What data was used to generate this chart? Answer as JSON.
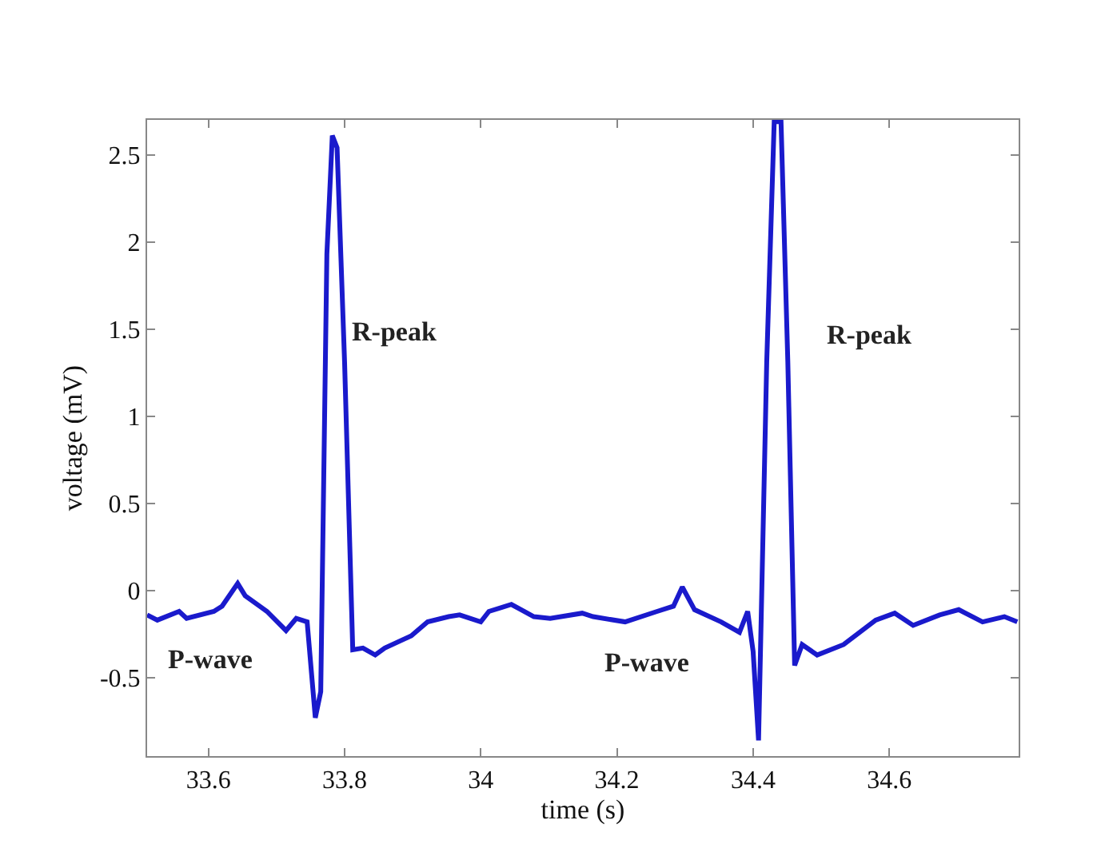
{
  "chart_data": {
    "type": "line",
    "xlabel": "time (s)",
    "ylabel": "voltage (mV)",
    "xlim": [
      33.51,
      34.79
    ],
    "ylim": [
      -0.95,
      2.7
    ],
    "xticks": [
      {
        "value": 33.6,
        "label": "33.6"
      },
      {
        "value": 33.8,
        "label": "33.8"
      },
      34,
      {
        "value": 34.2,
        "label": "34.2"
      },
      {
        "value": 34.4,
        "label": "34.4"
      },
      {
        "value": 34.6,
        "label": "34.6"
      }
    ],
    "yticks": [
      -0.5,
      0,
      0.5,
      1,
      1.5,
      2,
      2.5
    ],
    "marker": "none",
    "line_style": "solid",
    "series": [
      {
        "color": "#1a1acc",
        "x": [
          33.51,
          33.525,
          33.557,
          33.568,
          33.608,
          33.62,
          33.643,
          33.654,
          33.686,
          33.714,
          33.729,
          33.745,
          33.757,
          33.765,
          33.774,
          33.782,
          33.789,
          33.8,
          33.812,
          33.827,
          33.845,
          33.859,
          33.898,
          33.922,
          33.953,
          33.969,
          34.0,
          34.012,
          34.045,
          34.078,
          34.102,
          34.149,
          34.165,
          34.212,
          34.259,
          34.283,
          34.296,
          34.314,
          34.353,
          34.38,
          34.392,
          34.4,
          34.408,
          34.42,
          34.431,
          34.441,
          34.451,
          34.461,
          34.472,
          34.494,
          34.533,
          34.58,
          34.608,
          34.635,
          34.674,
          34.702,
          34.737,
          34.769,
          34.788
        ],
        "values": [
          -0.14,
          -0.17,
          -0.12,
          -0.16,
          -0.12,
          -0.09,
          0.04,
          -0.03,
          -0.12,
          -0.23,
          -0.16,
          -0.18,
          -0.73,
          -0.58,
          1.93,
          2.61,
          2.54,
          1.31,
          -0.34,
          -0.33,
          -0.37,
          -0.33,
          -0.26,
          -0.18,
          -0.15,
          -0.14,
          -0.18,
          -0.12,
          -0.08,
          -0.15,
          -0.16,
          -0.13,
          -0.15,
          -0.18,
          -0.12,
          -0.09,
          0.02,
          -0.11,
          -0.18,
          -0.24,
          -0.12,
          -0.35,
          -0.86,
          1.31,
          2.69,
          2.69,
          1.31,
          -0.43,
          -0.31,
          -0.37,
          -0.31,
          -0.17,
          -0.13,
          -0.2,
          -0.14,
          -0.11,
          -0.18,
          -0.15,
          -0.18
        ]
      }
    ],
    "annotations": [
      "R-peak",
      "R-peak",
      "P-wave",
      "P-wave"
    ]
  }
}
